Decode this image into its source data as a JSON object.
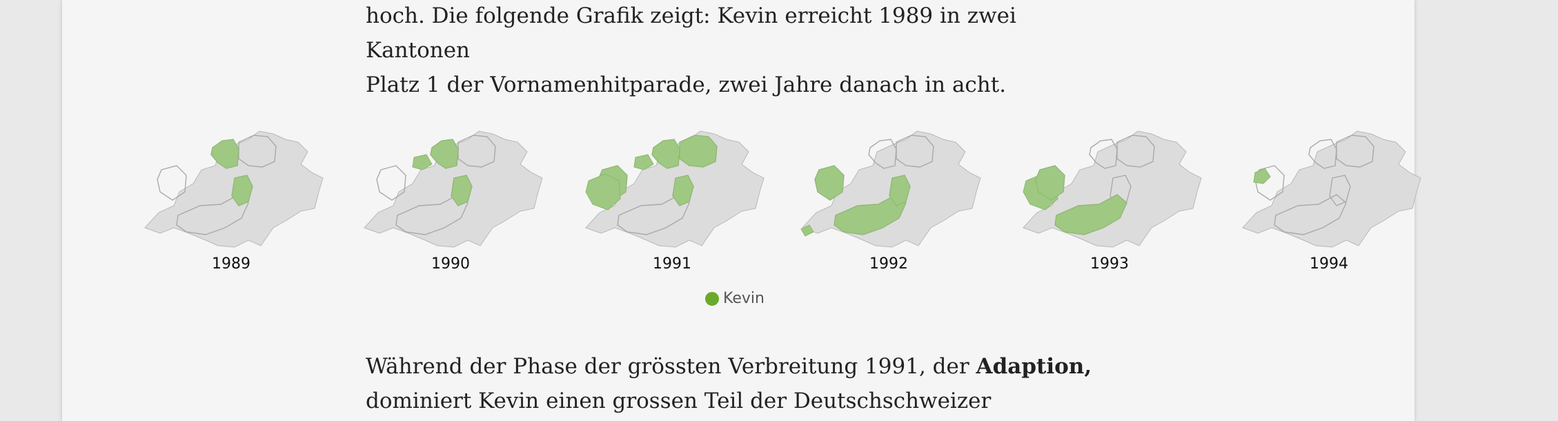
{
  "article": {
    "para_top_line1": "hoch. Die folgende Grafik zeigt: Kevin erreicht 1989 in zwei Kantonen",
    "para_top_line2": "Platz 1 der Vornamenhitparade, zwei Jahre danach in acht.",
    "para_bottom_line1_pre": "Während der Phase der grössten Verbreitung 1991, der ",
    "para_bottom_line1_bold": "Adaption,",
    "para_bottom_line2": "dominiert Kevin einen grossen Teil der Deutschschweizer"
  },
  "maps": [
    {
      "year": "1989",
      "highlight": [
        "north-center",
        "central"
      ]
    },
    {
      "year": "1990",
      "highlight": [
        "north-center",
        "north-west-small",
        "central"
      ]
    },
    {
      "year": "1991",
      "highlight": [
        "north-center",
        "north-east",
        "north-west-small",
        "west-center",
        "central",
        "far-west"
      ]
    },
    {
      "year": "1992",
      "highlight": [
        "west-center",
        "valais",
        "central",
        "geneva"
      ]
    },
    {
      "year": "1993",
      "highlight": [
        "far-west",
        "west-center",
        "valais"
      ]
    },
    {
      "year": "1994",
      "highlight": [
        "far-west-small"
      ]
    }
  ],
  "legend": {
    "label": "Kevin",
    "color": "#6aaa2a",
    "highlight_color": "#9fc882"
  }
}
